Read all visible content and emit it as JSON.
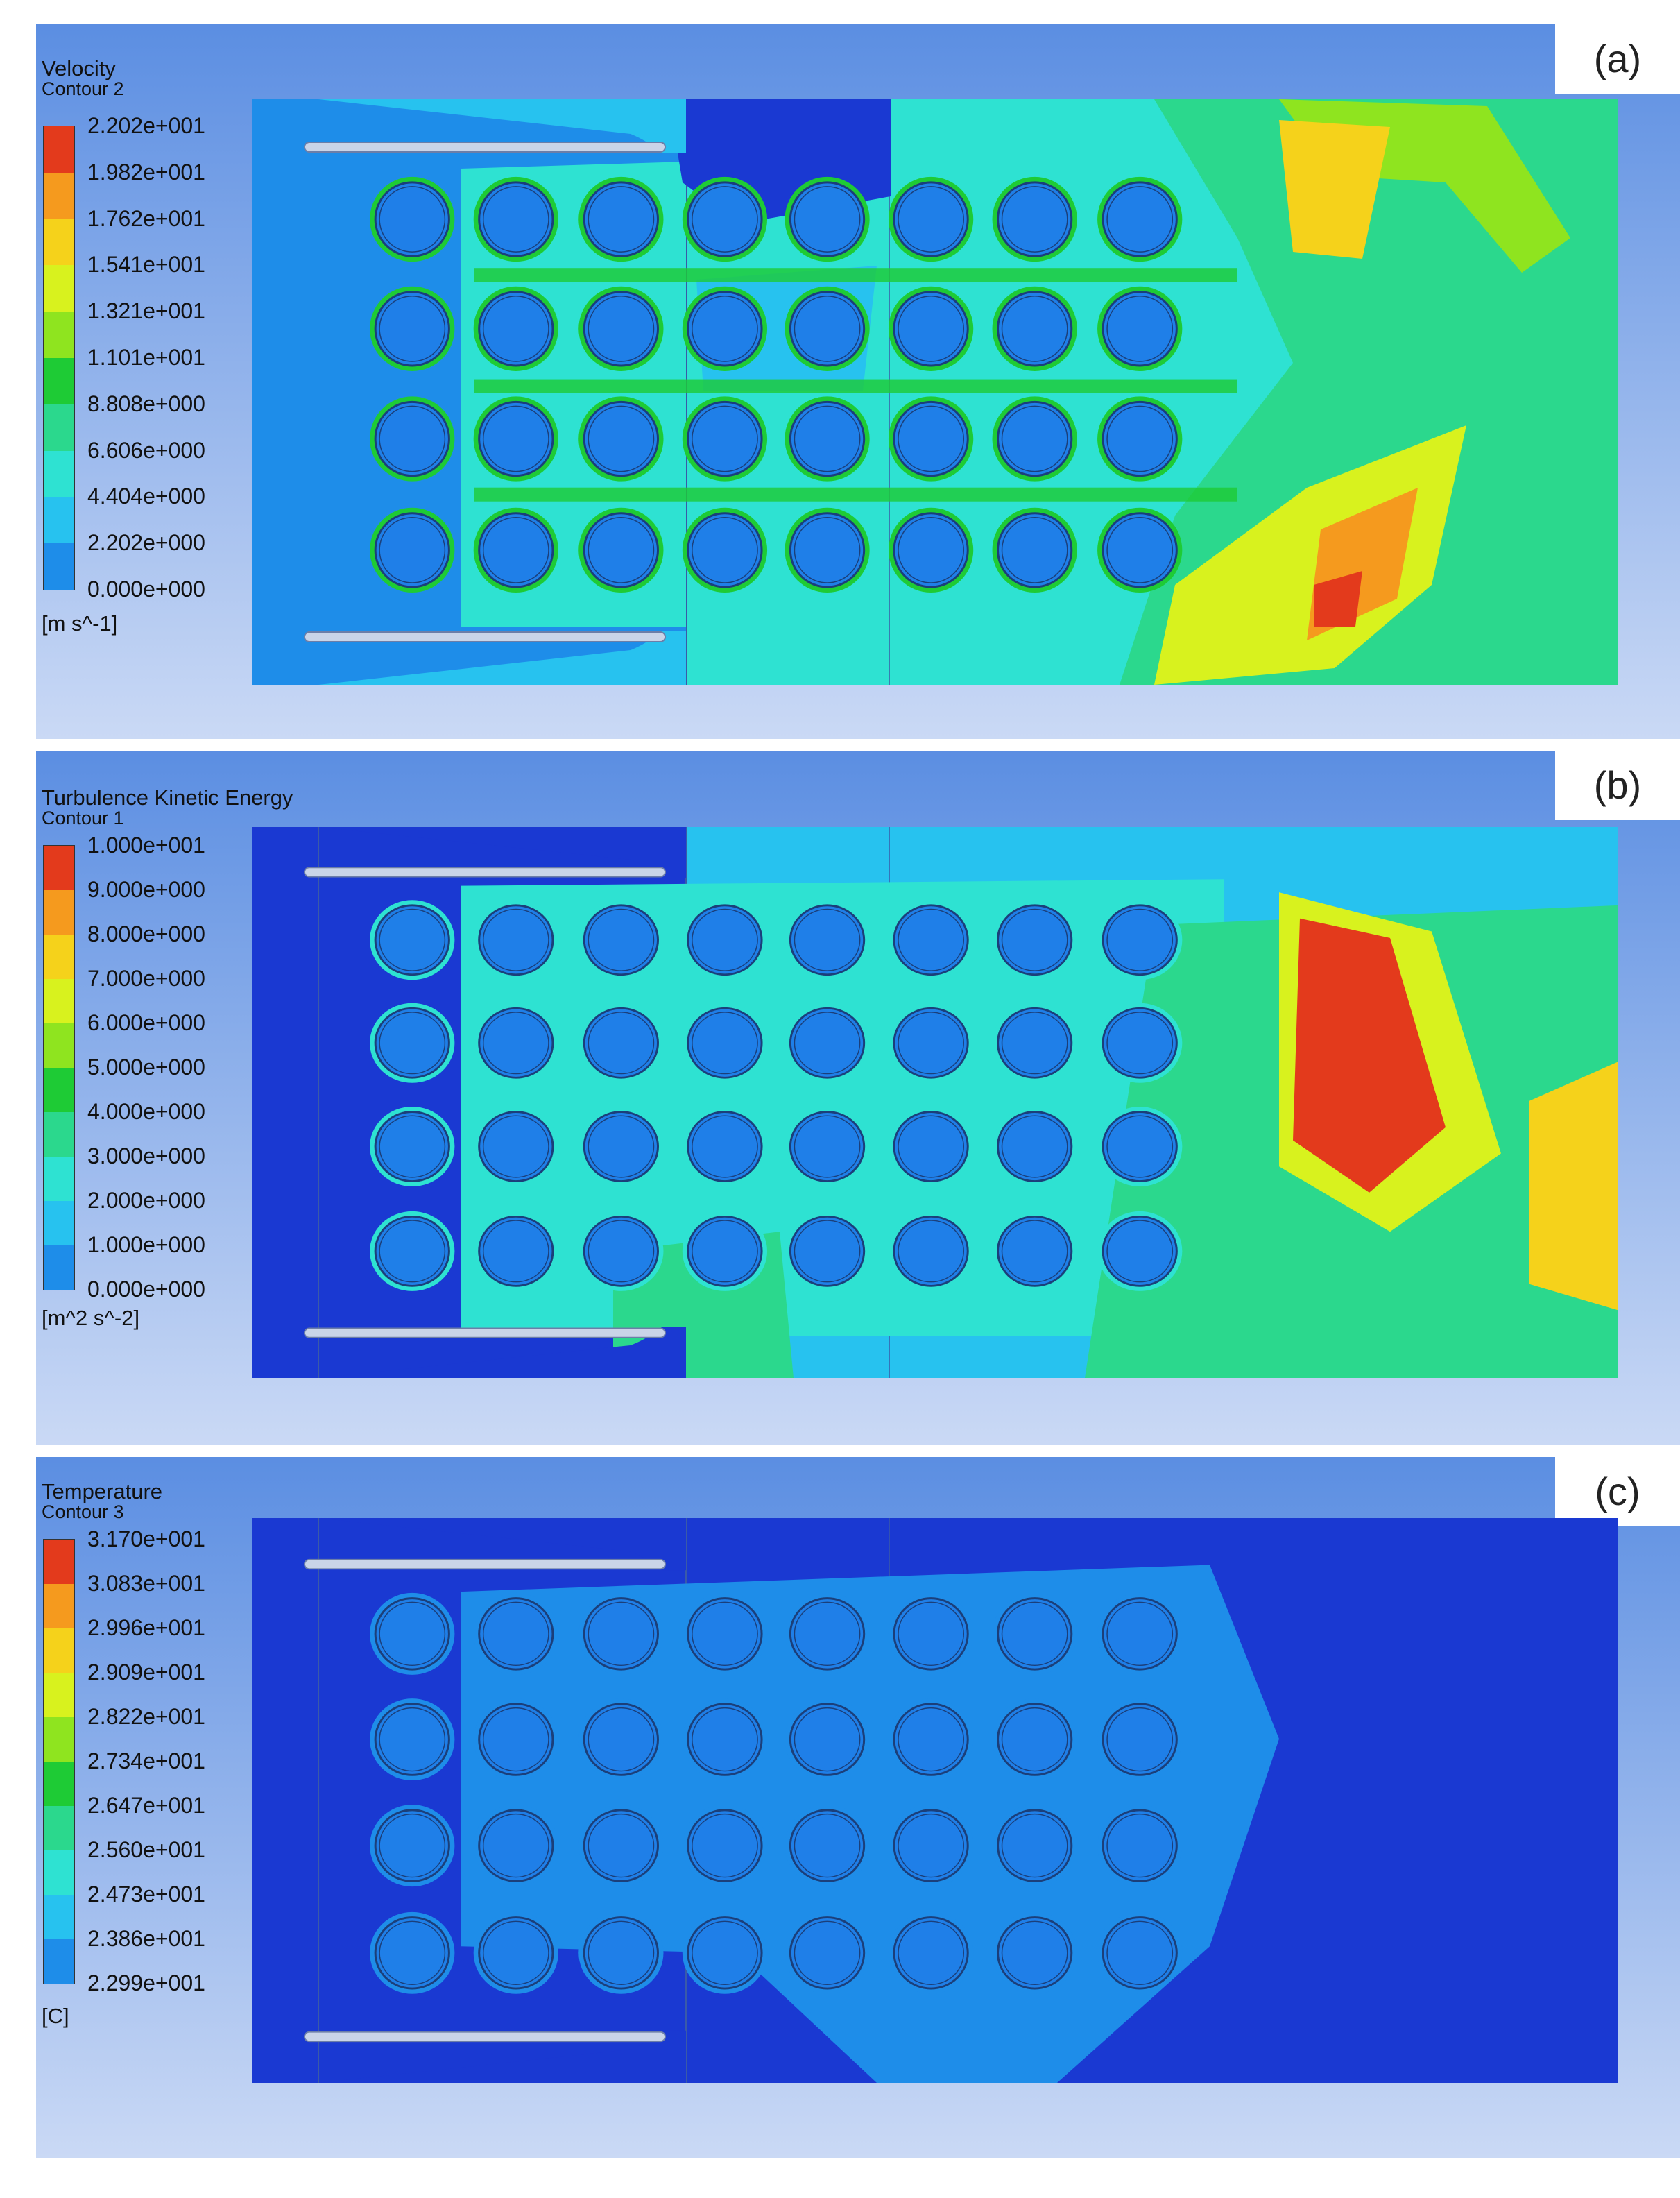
{
  "panels": [
    {
      "label": "(a)",
      "legend_title": "Velocity",
      "legend_subtitle": "Contour 2",
      "unit": "[m s^-1]",
      "ticks": [
        "2.202e+001",
        "1.982e+001",
        "1.762e+001",
        "1.541e+001",
        "1.321e+001",
        "1.101e+001",
        "8.808e+000",
        "6.606e+000",
        "4.404e+000",
        "2.202e+000",
        "0.000e+000"
      ]
    },
    {
      "label": "(b)",
      "legend_title": "Turbulence Kinetic Energy",
      "legend_subtitle": "Contour 1",
      "unit": "[m^2 s^-2]",
      "ticks": [
        "1.000e+001",
        "9.000e+000",
        "8.000e+000",
        "7.000e+000",
        "6.000e+000",
        "5.000e+000",
        "4.000e+000",
        "3.000e+000",
        "2.000e+000",
        "1.000e+000",
        "0.000e+000"
      ]
    },
    {
      "label": "(c)",
      "legend_title": "Temperature",
      "legend_subtitle": "Contour 3",
      "unit": "[C]",
      "ticks": [
        "3.170e+001",
        "3.083e+001",
        "2.996e+001",
        "2.909e+001",
        "2.822e+001",
        "2.734e+001",
        "2.647e+001",
        "2.560e+001",
        "2.473e+001",
        "2.386e+001",
        "2.299e+001"
      ]
    }
  ],
  "colormap": [
    "#e33a1c",
    "#f59a1e",
    "#f5d21b",
    "#d8f21e",
    "#8fe41f",
    "#1ecb35",
    "#2bd88d",
    "#2ee2d2",
    "#27c2ef",
    "#1e8de9",
    "#1a39d2"
  ],
  "tube_grid": {
    "rows": 4,
    "cols": 8
  }
}
